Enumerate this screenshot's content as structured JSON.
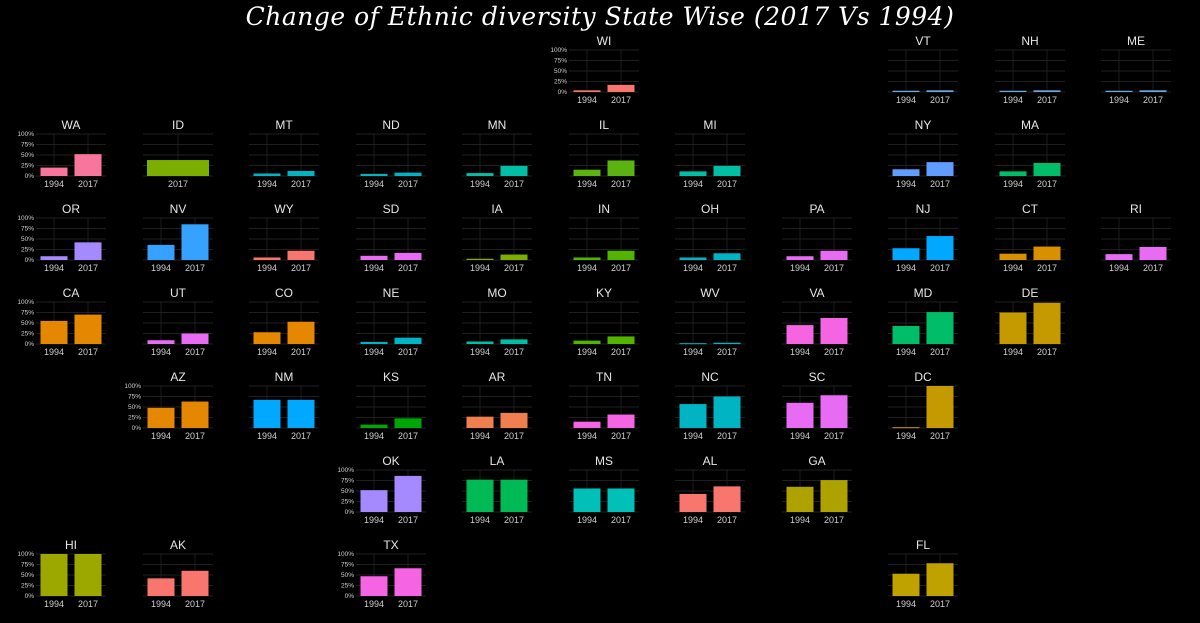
{
  "title": "Change of Ethnic diversity State Wise (2017 Vs 1994)",
  "chart_data": {
    "type": "bar",
    "layout": "small-multiples-state-grid",
    "categories": [
      "1994",
      "2017"
    ],
    "y_tick_labels": [
      "100%",
      "75%",
      "50%",
      "25%",
      "0%"
    ],
    "ylim": [
      0,
      100
    ],
    "grid": true,
    "states": [
      {
        "name": "WI",
        "row": 0,
        "col": 5,
        "values": [
          4,
          17
        ],
        "color": "#F8766D",
        "y_axis": true
      },
      {
        "name": "VT",
        "row": 0,
        "col": 8,
        "values": [
          3,
          4
        ],
        "color": "#6FA8DC",
        "y_axis": false
      },
      {
        "name": "NH",
        "row": 0,
        "col": 9,
        "values": [
          3,
          4
        ],
        "color": "#6FA8DC",
        "y_axis": false
      },
      {
        "name": "ME",
        "row": 0,
        "col": 10,
        "values": [
          3,
          4
        ],
        "color": "#6FA8DC",
        "y_axis": false
      },
      {
        "name": "WA",
        "row": 1,
        "col": 0,
        "values": [
          20,
          52
        ],
        "color": "#F8769D",
        "y_axis": true
      },
      {
        "name": "ID",
        "row": 1,
        "col": 1,
        "values": [
          38
        ],
        "color": "#7CAE00",
        "y_axis": false,
        "categories": [
          "2017"
        ]
      },
      {
        "name": "MT",
        "row": 1,
        "col": 2,
        "values": [
          6,
          12
        ],
        "color": "#00B4C4",
        "y_axis": false
      },
      {
        "name": "ND",
        "row": 1,
        "col": 3,
        "values": [
          5,
          8
        ],
        "color": "#00B4C4",
        "y_axis": false
      },
      {
        "name": "MN",
        "row": 1,
        "col": 4,
        "values": [
          7,
          24
        ],
        "color": "#00BFA4",
        "y_axis": false
      },
      {
        "name": "IL",
        "row": 1,
        "col": 5,
        "values": [
          15,
          37
        ],
        "color": "#5AB30E",
        "y_axis": false
      },
      {
        "name": "MI",
        "row": 1,
        "col": 6,
        "values": [
          11,
          24
        ],
        "color": "#00BFA4",
        "y_axis": false
      },
      {
        "name": "NY",
        "row": 1,
        "col": 8,
        "values": [
          16,
          33
        ],
        "color": "#619CFF",
        "y_axis": false
      },
      {
        "name": "MA",
        "row": 1,
        "col": 9,
        "values": [
          11,
          31
        ],
        "color": "#00BE67",
        "y_axis": false
      },
      {
        "name": "OR",
        "row": 2,
        "col": 0,
        "values": [
          9,
          42
        ],
        "color": "#A58AFF",
        "y_axis": true
      },
      {
        "name": "NV",
        "row": 2,
        "col": 1,
        "values": [
          36,
          85
        ],
        "color": "#35A2FF",
        "y_axis": false
      },
      {
        "name": "WY",
        "row": 2,
        "col": 2,
        "values": [
          6,
          22
        ],
        "color": "#F8766D",
        "y_axis": false
      },
      {
        "name": "SD",
        "row": 2,
        "col": 3,
        "values": [
          10,
          17
        ],
        "color": "#E76BF3",
        "y_axis": false
      },
      {
        "name": "IA",
        "row": 2,
        "col": 4,
        "values": [
          3,
          13
        ],
        "color": "#7CAE00",
        "y_axis": false
      },
      {
        "name": "IN",
        "row": 2,
        "col": 5,
        "values": [
          6,
          22
        ],
        "color": "#53B400",
        "y_axis": false
      },
      {
        "name": "OH",
        "row": 2,
        "col": 6,
        "values": [
          6,
          16
        ],
        "color": "#00B4C4",
        "y_axis": false
      },
      {
        "name": "PA",
        "row": 2,
        "col": 7,
        "values": [
          9,
          22
        ],
        "color": "#E76BF3",
        "y_axis": false
      },
      {
        "name": "NJ",
        "row": 2,
        "col": 8,
        "values": [
          28,
          57
        ],
        "color": "#00A9FF",
        "y_axis": false
      },
      {
        "name": "CT",
        "row": 2,
        "col": 9,
        "values": [
          15,
          32
        ],
        "color": "#D89000",
        "y_axis": false
      },
      {
        "name": "RI",
        "row": 2,
        "col": 10,
        "values": [
          14,
          31
        ],
        "color": "#E76BF3",
        "y_axis": false
      },
      {
        "name": "CA",
        "row": 3,
        "col": 0,
        "values": [
          55,
          70
        ],
        "color": "#E58700",
        "y_axis": true
      },
      {
        "name": "UT",
        "row": 3,
        "col": 1,
        "values": [
          9,
          25
        ],
        "color": "#E76BF3",
        "y_axis": false
      },
      {
        "name": "CO",
        "row": 3,
        "col": 2,
        "values": [
          28,
          53
        ],
        "color": "#E58700",
        "y_axis": false
      },
      {
        "name": "NE",
        "row": 3,
        "col": 3,
        "values": [
          5,
          15
        ],
        "color": "#00B4C4",
        "y_axis": false
      },
      {
        "name": "MO",
        "row": 3,
        "col": 4,
        "values": [
          6,
          11
        ],
        "color": "#00BFA4",
        "y_axis": false
      },
      {
        "name": "KY",
        "row": 3,
        "col": 5,
        "values": [
          8,
          18
        ],
        "color": "#53B400",
        "y_axis": false
      },
      {
        "name": "WV",
        "row": 3,
        "col": 6,
        "values": [
          2,
          3
        ],
        "color": "#00B4C4",
        "y_axis": false
      },
      {
        "name": "VA",
        "row": 3,
        "col": 7,
        "values": [
          45,
          62
        ],
        "color": "#F564E3",
        "y_axis": false
      },
      {
        "name": "MD",
        "row": 3,
        "col": 8,
        "values": [
          43,
          76
        ],
        "color": "#00BE67",
        "y_axis": false
      },
      {
        "name": "DE",
        "row": 3,
        "col": 9,
        "values": [
          75,
          98
        ],
        "color": "#C49A00",
        "y_axis": false
      },
      {
        "name": "AZ",
        "row": 4,
        "col": 1,
        "values": [
          48,
          63
        ],
        "color": "#E58700",
        "y_axis": true
      },
      {
        "name": "NM",
        "row": 4,
        "col": 2,
        "values": [
          67,
          67
        ],
        "color": "#00A9FF",
        "y_axis": false
      },
      {
        "name": "KS",
        "row": 4,
        "col": 3,
        "values": [
          8,
          23
        ],
        "color": "#00A608",
        "y_axis": false
      },
      {
        "name": "AR",
        "row": 4,
        "col": 4,
        "values": [
          27,
          36
        ],
        "color": "#F07F4F",
        "y_axis": false
      },
      {
        "name": "TN",
        "row": 4,
        "col": 5,
        "values": [
          15,
          32
        ],
        "color": "#F564E3",
        "y_axis": false
      },
      {
        "name": "NC",
        "row": 4,
        "col": 6,
        "values": [
          57,
          75
        ],
        "color": "#00B4C4",
        "y_axis": false
      },
      {
        "name": "SC",
        "row": 4,
        "col": 7,
        "values": [
          60,
          78
        ],
        "color": "#E76BF3",
        "y_axis": false
      },
      {
        "name": "DC",
        "row": 4,
        "col": 8,
        "values": [
          2,
          100
        ],
        "color": "#C49A00",
        "y_axis": false
      },
      {
        "name": "OK",
        "row": 5,
        "col": 3,
        "values": [
          52,
          86
        ],
        "color": "#A58AFF",
        "y_axis": true
      },
      {
        "name": "LA",
        "row": 5,
        "col": 4,
        "values": [
          77,
          77
        ],
        "color": "#00BA56",
        "y_axis": false
      },
      {
        "name": "MS",
        "row": 5,
        "col": 5,
        "values": [
          56,
          56
        ],
        "color": "#00C0B8",
        "y_axis": false
      },
      {
        "name": "AL",
        "row": 5,
        "col": 6,
        "values": [
          43,
          61
        ],
        "color": "#F8766D",
        "y_axis": false
      },
      {
        "name": "GA",
        "row": 5,
        "col": 7,
        "values": [
          60,
          76
        ],
        "color": "#AEA200",
        "y_axis": false
      },
      {
        "name": "HI",
        "row": 6,
        "col": 0,
        "values": [
          100,
          100
        ],
        "color": "#9CA700",
        "y_axis": true
      },
      {
        "name": "AK",
        "row": 6,
        "col": 1,
        "values": [
          42,
          60
        ],
        "color": "#F8766D",
        "y_axis": false
      },
      {
        "name": "TX",
        "row": 6,
        "col": 3,
        "values": [
          47,
          66
        ],
        "color": "#F564E3",
        "y_axis": true
      },
      {
        "name": "FL",
        "row": 6,
        "col": 8,
        "values": [
          53,
          78
        ],
        "color": "#BFA100",
        "y_axis": false
      }
    ]
  }
}
